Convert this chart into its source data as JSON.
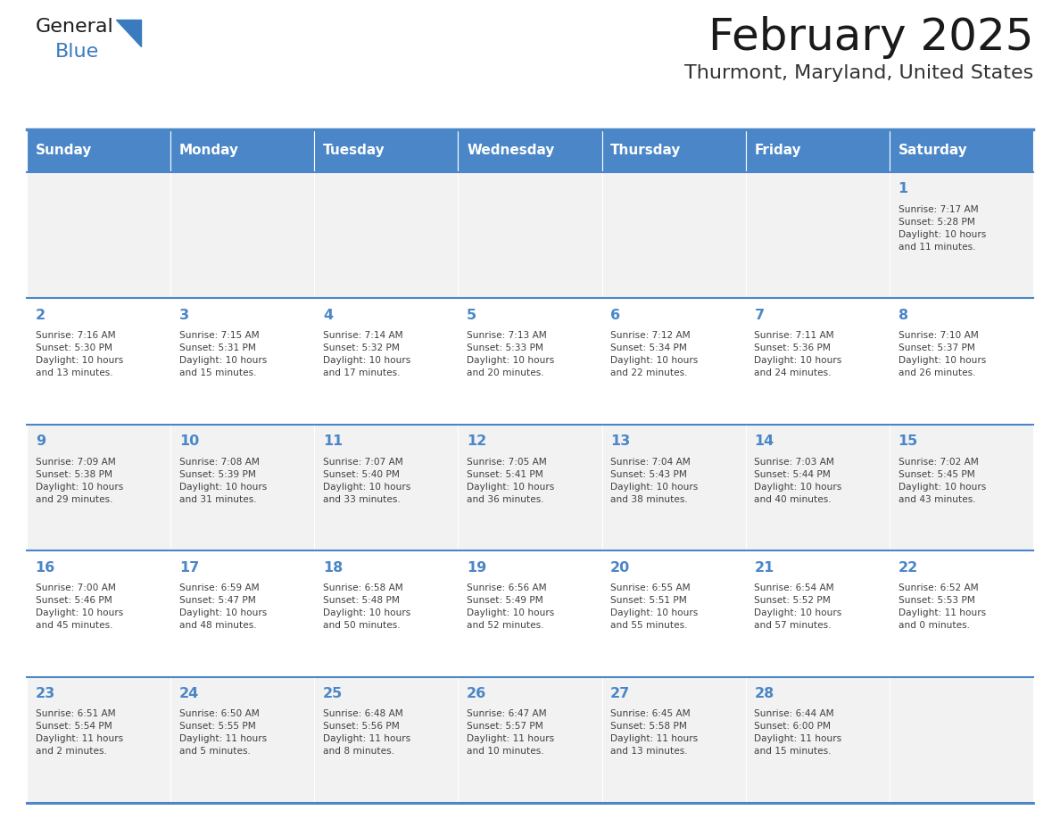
{
  "title": "February 2025",
  "subtitle": "Thurmont, Maryland, United States",
  "days_of_week": [
    "Sunday",
    "Monday",
    "Tuesday",
    "Wednesday",
    "Thursday",
    "Friday",
    "Saturday"
  ],
  "header_bg": "#4a86c8",
  "header_text_color": "#ffffff",
  "cell_bg_light": "#f2f2f2",
  "cell_bg_white": "#ffffff",
  "line_color": "#4a86c8",
  "title_color": "#1a1a1a",
  "subtitle_color": "#333333",
  "day_num_color": "#4a86c8",
  "cell_text_color": "#404040",
  "logo_general_color": "#1a1a1a",
  "logo_blue_color": "#3a7bbf",
  "calendar_data": [
    [
      {
        "day": null,
        "info": ""
      },
      {
        "day": null,
        "info": ""
      },
      {
        "day": null,
        "info": ""
      },
      {
        "day": null,
        "info": ""
      },
      {
        "day": null,
        "info": ""
      },
      {
        "day": null,
        "info": ""
      },
      {
        "day": 1,
        "info": "Sunrise: 7:17 AM\nSunset: 5:28 PM\nDaylight: 10 hours\nand 11 minutes."
      }
    ],
    [
      {
        "day": 2,
        "info": "Sunrise: 7:16 AM\nSunset: 5:30 PM\nDaylight: 10 hours\nand 13 minutes."
      },
      {
        "day": 3,
        "info": "Sunrise: 7:15 AM\nSunset: 5:31 PM\nDaylight: 10 hours\nand 15 minutes."
      },
      {
        "day": 4,
        "info": "Sunrise: 7:14 AM\nSunset: 5:32 PM\nDaylight: 10 hours\nand 17 minutes."
      },
      {
        "day": 5,
        "info": "Sunrise: 7:13 AM\nSunset: 5:33 PM\nDaylight: 10 hours\nand 20 minutes."
      },
      {
        "day": 6,
        "info": "Sunrise: 7:12 AM\nSunset: 5:34 PM\nDaylight: 10 hours\nand 22 minutes."
      },
      {
        "day": 7,
        "info": "Sunrise: 7:11 AM\nSunset: 5:36 PM\nDaylight: 10 hours\nand 24 minutes."
      },
      {
        "day": 8,
        "info": "Sunrise: 7:10 AM\nSunset: 5:37 PM\nDaylight: 10 hours\nand 26 minutes."
      }
    ],
    [
      {
        "day": 9,
        "info": "Sunrise: 7:09 AM\nSunset: 5:38 PM\nDaylight: 10 hours\nand 29 minutes."
      },
      {
        "day": 10,
        "info": "Sunrise: 7:08 AM\nSunset: 5:39 PM\nDaylight: 10 hours\nand 31 minutes."
      },
      {
        "day": 11,
        "info": "Sunrise: 7:07 AM\nSunset: 5:40 PM\nDaylight: 10 hours\nand 33 minutes."
      },
      {
        "day": 12,
        "info": "Sunrise: 7:05 AM\nSunset: 5:41 PM\nDaylight: 10 hours\nand 36 minutes."
      },
      {
        "day": 13,
        "info": "Sunrise: 7:04 AM\nSunset: 5:43 PM\nDaylight: 10 hours\nand 38 minutes."
      },
      {
        "day": 14,
        "info": "Sunrise: 7:03 AM\nSunset: 5:44 PM\nDaylight: 10 hours\nand 40 minutes."
      },
      {
        "day": 15,
        "info": "Sunrise: 7:02 AM\nSunset: 5:45 PM\nDaylight: 10 hours\nand 43 minutes."
      }
    ],
    [
      {
        "day": 16,
        "info": "Sunrise: 7:00 AM\nSunset: 5:46 PM\nDaylight: 10 hours\nand 45 minutes."
      },
      {
        "day": 17,
        "info": "Sunrise: 6:59 AM\nSunset: 5:47 PM\nDaylight: 10 hours\nand 48 minutes."
      },
      {
        "day": 18,
        "info": "Sunrise: 6:58 AM\nSunset: 5:48 PM\nDaylight: 10 hours\nand 50 minutes."
      },
      {
        "day": 19,
        "info": "Sunrise: 6:56 AM\nSunset: 5:49 PM\nDaylight: 10 hours\nand 52 minutes."
      },
      {
        "day": 20,
        "info": "Sunrise: 6:55 AM\nSunset: 5:51 PM\nDaylight: 10 hours\nand 55 minutes."
      },
      {
        "day": 21,
        "info": "Sunrise: 6:54 AM\nSunset: 5:52 PM\nDaylight: 10 hours\nand 57 minutes."
      },
      {
        "day": 22,
        "info": "Sunrise: 6:52 AM\nSunset: 5:53 PM\nDaylight: 11 hours\nand 0 minutes."
      }
    ],
    [
      {
        "day": 23,
        "info": "Sunrise: 6:51 AM\nSunset: 5:54 PM\nDaylight: 11 hours\nand 2 minutes."
      },
      {
        "day": 24,
        "info": "Sunrise: 6:50 AM\nSunset: 5:55 PM\nDaylight: 11 hours\nand 5 minutes."
      },
      {
        "day": 25,
        "info": "Sunrise: 6:48 AM\nSunset: 5:56 PM\nDaylight: 11 hours\nand 8 minutes."
      },
      {
        "day": 26,
        "info": "Sunrise: 6:47 AM\nSunset: 5:57 PM\nDaylight: 11 hours\nand 10 minutes."
      },
      {
        "day": 27,
        "info": "Sunrise: 6:45 AM\nSunset: 5:58 PM\nDaylight: 11 hours\nand 13 minutes."
      },
      {
        "day": 28,
        "info": "Sunrise: 6:44 AM\nSunset: 6:00 PM\nDaylight: 11 hours\nand 15 minutes."
      },
      {
        "day": null,
        "info": ""
      }
    ]
  ]
}
